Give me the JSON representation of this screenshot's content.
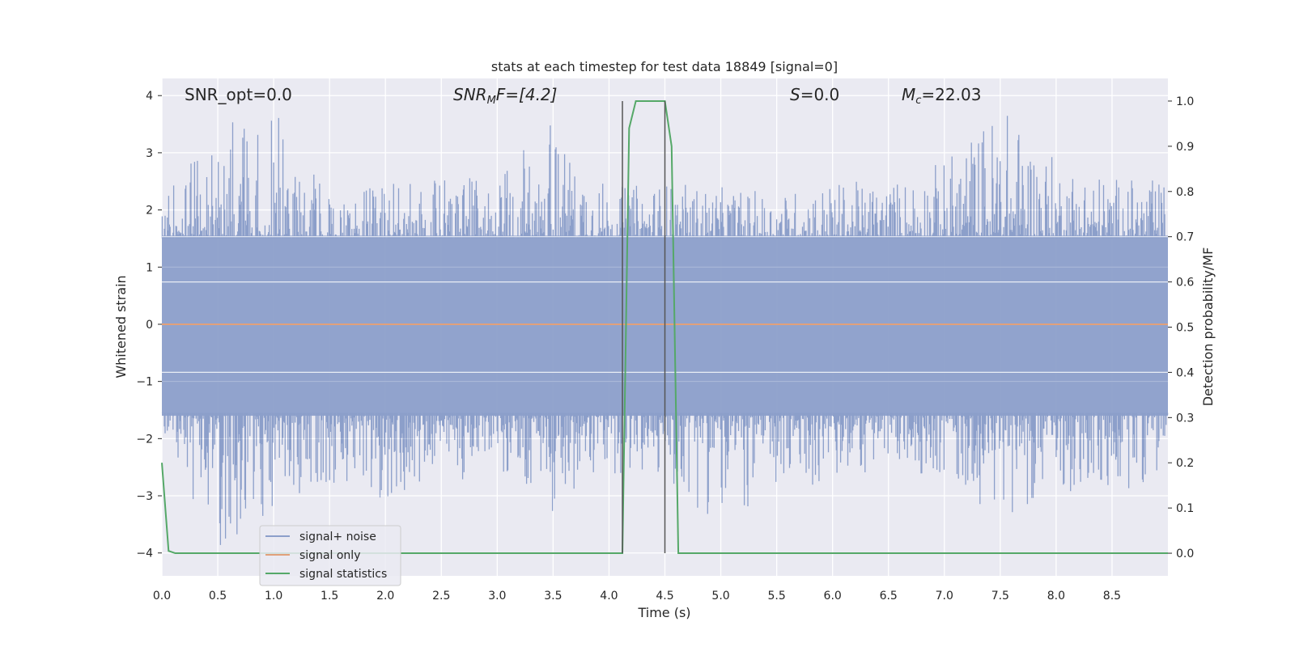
{
  "chart_data": {
    "type": "line",
    "title": "stats at each timestep for test data 18849 [signal=0]",
    "xlabel": "Time (s)",
    "ylabel_left": "Whitened strain",
    "ylabel_right": "Detection probability/MF",
    "xlim": [
      0,
      9.0
    ],
    "ylim_left": [
      -4.4,
      4.3
    ],
    "ylim_right": [
      -0.05,
      1.05
    ],
    "xticks": [
      0.0,
      0.5,
      1.0,
      1.5,
      2.0,
      2.5,
      3.0,
      3.5,
      4.0,
      4.5,
      5.0,
      5.5,
      6.0,
      6.5,
      7.0,
      7.5,
      8.0,
      8.5
    ],
    "xtick_labels": [
      "0.0",
      "0.5",
      "1.0",
      "1.5",
      "2.0",
      "2.5",
      "3.0",
      "3.5",
      "4.0",
      "4.5",
      "5.0",
      "5.5",
      "6.0",
      "6.5",
      "7.0",
      "7.5",
      "8.0",
      "8.5"
    ],
    "yticks_left": [
      4,
      3,
      2,
      1,
      0,
      -1,
      -2,
      -3,
      -4
    ],
    "ytick_labels_left": [
      "4",
      "3",
      "2",
      "1",
      "0",
      "−1",
      "−2",
      "−3",
      "−4"
    ],
    "yticks_right": [
      1.0,
      0.9,
      0.8,
      0.7,
      0.6,
      0.5,
      0.4,
      0.3,
      0.2,
      0.1,
      0.0
    ],
    "ytick_labels_right": [
      "1.0",
      "0.9",
      "0.8",
      "0.7",
      "0.6",
      "0.5",
      "0.4",
      "0.3",
      "0.2",
      "0.1",
      "0.0"
    ],
    "grid": true,
    "legend_position": "lower-left",
    "annotations": {
      "snr_opt": "SNR_opt=0.0",
      "snr_mf_base": "SNR",
      "snr_mf_sub": "M",
      "snr_mf_rest": "F=[4.2]",
      "s_label": "S",
      "s_rest": "=0.0",
      "mc_base": "M",
      "mc_sub": "c",
      "mc_rest": "=22.03"
    },
    "vertical_lines_x": [
      4.12,
      4.5
    ],
    "noise_envelope": {
      "x": [
        0.0,
        0.5,
        1.0,
        1.5,
        2.0,
        2.5,
        3.0,
        3.5,
        4.0,
        4.5,
        5.0,
        5.5,
        6.0,
        6.5,
        7.0,
        7.5,
        8.0,
        8.5,
        9.0
      ],
      "upper_peak": [
        2.2,
        3.5,
        3.8,
        2.2,
        2.5,
        2.6,
        2.6,
        3.7,
        2.4,
        2.5,
        2.4,
        2.3,
        2.5,
        2.5,
        2.9,
        3.9,
        2.9,
        2.6,
        2.5
      ],
      "lower_peak": [
        -2.0,
        -4.0,
        -3.2,
        -2.8,
        -3.1,
        -2.8,
        -2.6,
        -3.3,
        -2.6,
        -2.8,
        -3.5,
        -3.0,
        -2.8,
        -2.5,
        -2.7,
        -3.4,
        -2.9,
        -3.1,
        -2.5
      ]
    },
    "series": [
      {
        "name": "signal+ noise",
        "color": "#8c9fca",
        "axis": "left"
      },
      {
        "name": "signal only",
        "color": "#e1a07a",
        "axis": "left",
        "x": [
          0.0,
          9.0
        ],
        "y": [
          0.0,
          0.0
        ]
      },
      {
        "name": "signal statistics",
        "color": "#55a868",
        "axis": "right",
        "x": [
          0.0,
          0.06,
          0.12,
          4.12,
          4.18,
          4.24,
          4.5,
          4.56,
          4.62,
          9.0
        ],
        "y": [
          0.2,
          0.005,
          0.0,
          0.0,
          0.94,
          1.0,
          1.0,
          0.9,
          0.0,
          0.0
        ]
      }
    ]
  }
}
